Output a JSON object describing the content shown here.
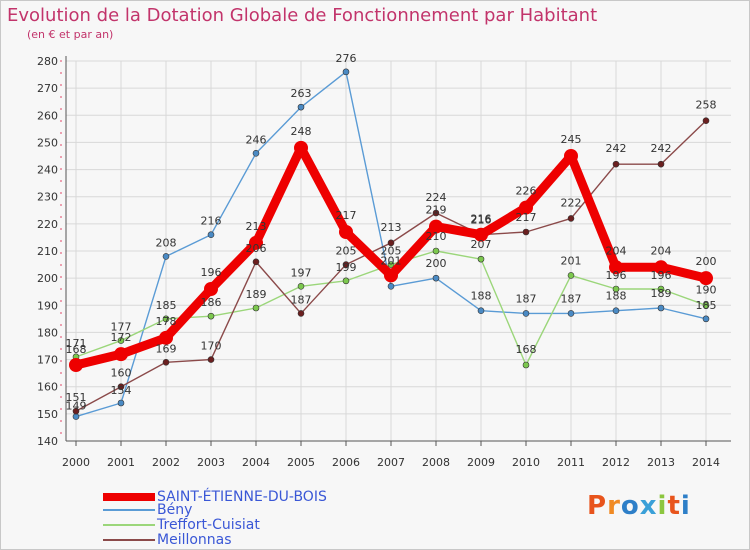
{
  "title": "Evolution de la Dotation Globale de Fonctionnement par Habitant",
  "subtitle": "(en € et par an)",
  "logo": "Proxiti",
  "colors": {
    "title": "#c2346b",
    "legend_text": "#3a57d6",
    "grid": "#d8d8d8"
  },
  "chart_data": {
    "type": "line",
    "title": "Evolution de la Dotation Globale de Fonctionnement par Habitant",
    "ylabel": "(en € et par an)",
    "xlabel": "",
    "ylim": [
      140,
      280
    ],
    "yticks": [
      140,
      150,
      160,
      170,
      180,
      190,
      200,
      210,
      220,
      230,
      240,
      250,
      260,
      270,
      280
    ],
    "categories": [
      "2000",
      "2001",
      "2002",
      "2003",
      "2004",
      "2005",
      "2006",
      "2007",
      "2008",
      "2009",
      "2010",
      "2011",
      "2012",
      "2013",
      "2014"
    ],
    "legend_position": "bottom-left",
    "series": [
      {
        "name": "Bény",
        "color": "#5a9bd5",
        "marker": "#4a8ac4",
        "values": [
          149,
          154,
          208,
          216,
          246,
          263,
          276,
          197,
          200,
          188,
          187,
          187,
          188,
          189,
          185
        ],
        "labels": [
          "149",
          "154",
          "208",
          "216",
          "246",
          "263",
          "276",
          "",
          "200",
          "188",
          "187",
          "187",
          "188",
          "189",
          "185"
        ]
      },
      {
        "name": "Treffort-Cuisiat",
        "color": "#9bd67a",
        "marker": "#7cc84e",
        "values": [
          171,
          177,
          185,
          186,
          189,
          197,
          199,
          205,
          210,
          207,
          168,
          201,
          196,
          196,
          190
        ],
        "labels": [
          "171",
          "177",
          "185",
          "186",
          "189",
          "197",
          "199",
          "205",
          "210",
          "207",
          "168",
          "201",
          "196",
          "196",
          "190"
        ]
      },
      {
        "name": "Meillonnas",
        "color": "#8b4a4a",
        "marker": "#6b1f1f",
        "values": [
          151,
          160,
          169,
          170,
          206,
          187,
          205,
          213,
          224,
          216,
          217,
          222,
          242,
          242,
          258
        ],
        "labels": [
          "151",
          "160",
          "169",
          "170",
          "206",
          "187",
          "205",
          "213",
          "224",
          "216",
          "217",
          "222",
          "242",
          "242",
          "258"
        ]
      },
      {
        "name": "SAINT-ÉTIENNE-DU-BOIS",
        "color": "#ee0000",
        "marker": "#ee0000",
        "values": [
          168,
          172,
          178,
          196,
          213,
          248,
          217,
          201,
          219,
          216,
          226,
          245,
          204,
          204,
          200
        ],
        "labels": [
          "168",
          "172",
          "178",
          "196",
          "213",
          "248",
          "217",
          "201",
          "219",
          "216",
          "226",
          "245",
          "204",
          "204",
          "200"
        ]
      }
    ],
    "legend_order": [
      "SAINT-ÉTIENNE-DU-BOIS",
      "Bény",
      "Treffort-Cuisiat",
      "Meillonnas"
    ]
  }
}
